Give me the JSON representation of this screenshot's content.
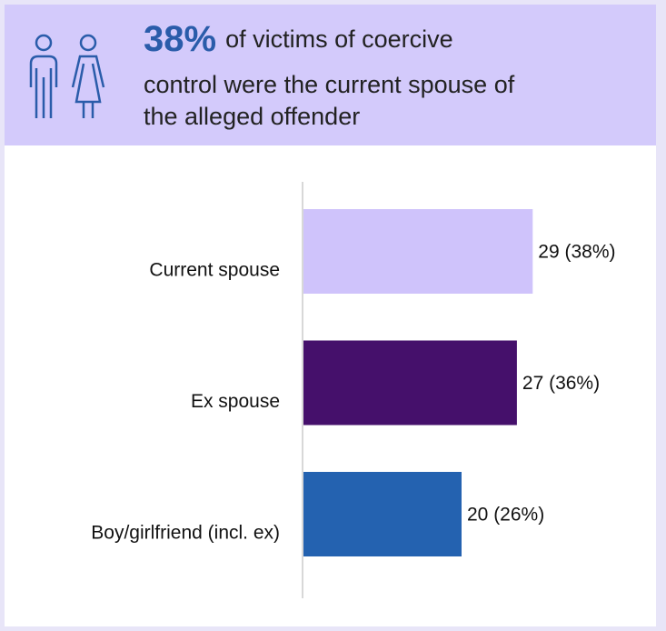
{
  "header": {
    "highlight": "38%",
    "lines": [
      "of victims of coercive",
      "control were the current spouse of",
      "the alleged offender"
    ]
  },
  "chart_data": {
    "type": "bar",
    "orientation": "horizontal",
    "categories": [
      "Current spouse",
      "Ex spouse",
      "Boy/girlfriend (incl. ex)"
    ],
    "values": [
      29,
      27,
      20
    ],
    "value_labels": [
      "29 (38%)",
      "27 (36%)",
      "20 (26%)"
    ],
    "colors": [
      "#cfc3fb",
      "#45106b",
      "#2462b0"
    ]
  }
}
